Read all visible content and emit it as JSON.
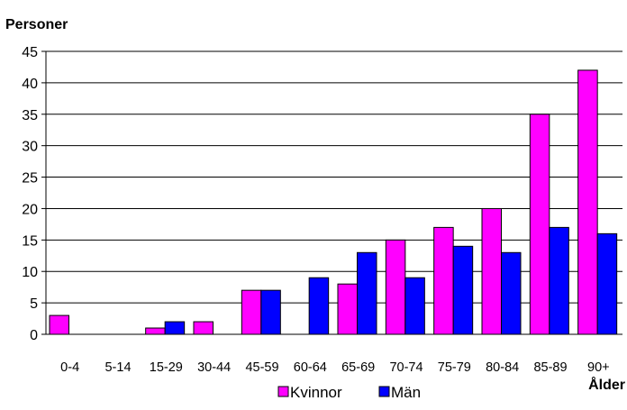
{
  "chart_data": {
    "type": "bar",
    "ylabel": "Personer",
    "xlabel": "Ålder",
    "ylim": [
      0,
      45
    ],
    "yticks": [
      0,
      5,
      10,
      15,
      20,
      25,
      30,
      35,
      40,
      45
    ],
    "grid": true,
    "legend_position": "bottom",
    "categories": [
      "0-4",
      "5-14",
      "15-29",
      "30-44",
      "45-59",
      "60-64",
      "65-69",
      "70-74",
      "75-79",
      "80-84",
      "85-89",
      "90+"
    ],
    "series": [
      {
        "name": "Kvinnor",
        "color": "#ff00ff",
        "values": [
          3,
          0,
          1,
          2,
          7,
          0,
          8,
          15,
          17,
          20,
          35,
          42
        ]
      },
      {
        "name": "Män",
        "color": "#0000ff",
        "values": [
          0,
          0,
          2,
          0,
          7,
          9,
          13,
          9,
          14,
          13,
          17,
          16
        ]
      }
    ]
  }
}
